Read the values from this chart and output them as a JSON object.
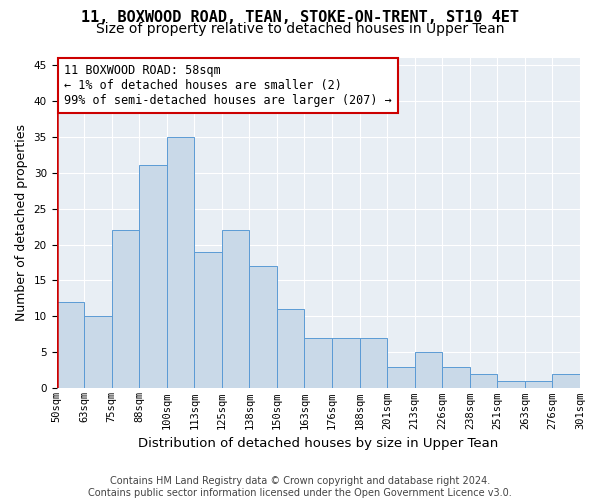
{
  "title": "11, BOXWOOD ROAD, TEAN, STOKE-ON-TRENT, ST10 4ET",
  "subtitle": "Size of property relative to detached houses in Upper Tean",
  "xlabel": "Distribution of detached houses by size in Upper Tean",
  "ylabel": "Number of detached properties",
  "bar_values": [
    12,
    10,
    22,
    31,
    35,
    19,
    22,
    17,
    11,
    7,
    7,
    7,
    3,
    5,
    3,
    2,
    1,
    1,
    2
  ],
  "bin_labels": [
    "50sqm",
    "63sqm",
    "75sqm",
    "88sqm",
    "100sqm",
    "113sqm",
    "125sqm",
    "138sqm",
    "150sqm",
    "163sqm",
    "176sqm",
    "188sqm",
    "201sqm",
    "213sqm",
    "226sqm",
    "238sqm",
    "251sqm",
    "263sqm",
    "276sqm"
  ],
  "last_label": "301sqm",
  "bar_color": "#c9d9e8",
  "bar_edge_color": "#5b9bd5",
  "background_color": "#e8eef4",
  "property_line_color": "#cc0000",
  "annotation_box_text": "11 BOXWOOD ROAD: 58sqm\n← 1% of detached houses are smaller (2)\n99% of semi-detached houses are larger (207) →",
  "annotation_box_color": "#cc0000",
  "ylim": [
    0,
    46
  ],
  "yticks": [
    0,
    5,
    10,
    15,
    20,
    25,
    30,
    35,
    40,
    45
  ],
  "footer": "Contains HM Land Registry data © Crown copyright and database right 2024.\nContains public sector information licensed under the Open Government Licence v3.0.",
  "title_fontsize": 11,
  "subtitle_fontsize": 10,
  "xlabel_fontsize": 9.5,
  "ylabel_fontsize": 9,
  "tick_fontsize": 7.5,
  "annotation_fontsize": 8.5,
  "footer_fontsize": 7
}
